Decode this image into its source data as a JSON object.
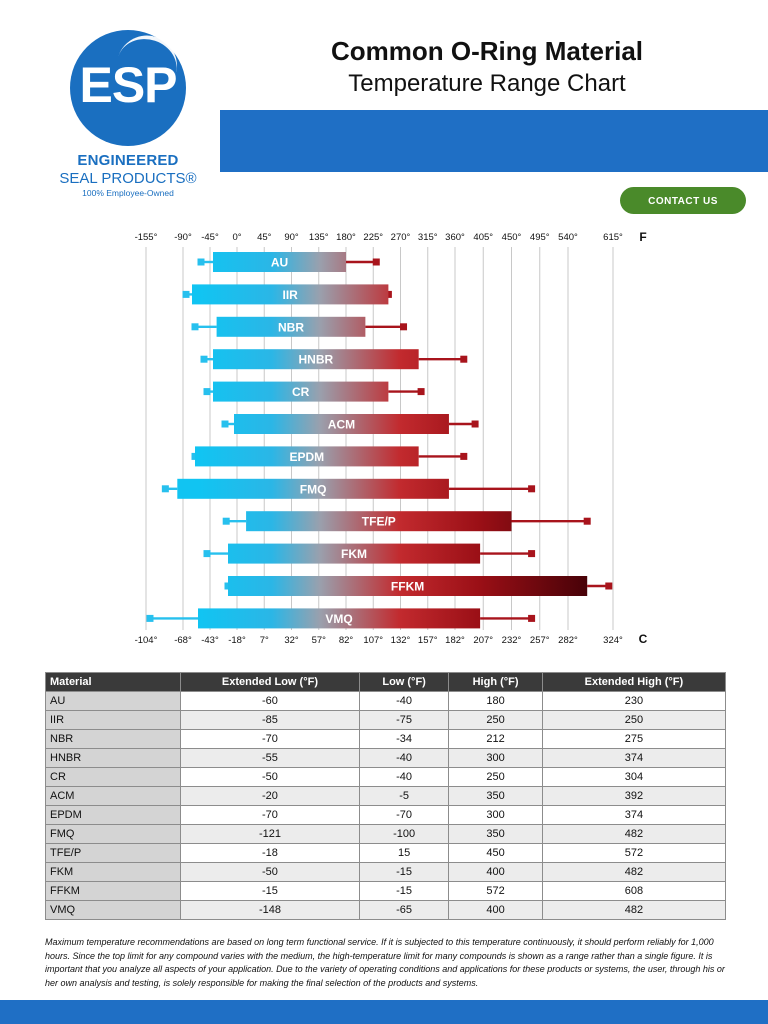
{
  "logo": {
    "mark": "ESP",
    "line1": "ENGINEERED",
    "line2": "SEAL PRODUCTS®",
    "line3": "100% Employee-Owned"
  },
  "header": {
    "title": "Common O-Ring Material",
    "subtitle": "Temperature Range Chart",
    "contact_label": "CONTACT US"
  },
  "colors": {
    "brand_blue": "#1f6fc5",
    "contact_green": "#4a8a2a",
    "bar_cold": "#11c4f2",
    "bar_hot": "#b0181e",
    "bar_hottest": "#4a0008"
  },
  "chart_data": {
    "type": "bar",
    "orientation": "horizontal-range",
    "top_axis_unit": "F",
    "bottom_axis_unit": "C",
    "top_ticks": [
      "-155°",
      "-90°",
      "-45°",
      "0°",
      "45°",
      "90°",
      "135°",
      "180°",
      "225°",
      "270°",
      "315°",
      "360°",
      "405°",
      "450°",
      "495°",
      "540°",
      "615°"
    ],
    "bottom_ticks": [
      "-104°",
      "-68°",
      "-43°",
      "-18°",
      "7°",
      "32°",
      "57°",
      "82°",
      "107°",
      "132°",
      "157°",
      "182°",
      "207°",
      "232°",
      "257°",
      "282°",
      "324°"
    ],
    "xlim": [
      -155,
      615
    ],
    "grid": true,
    "categories": [
      "AU",
      "IIR",
      "NBR",
      "HNBR",
      "CR",
      "ACM",
      "EPDM",
      "FMQ",
      "TFE/P",
      "FKM",
      "FFKM",
      "VMQ"
    ],
    "series": [
      {
        "name": "Extended Low (°F)",
        "values": [
          -60,
          -85,
          -70,
          -55,
          -50,
          -20,
          -70,
          -121,
          -18,
          -50,
          -15,
          -148
        ]
      },
      {
        "name": "Low (°F)",
        "values": [
          -40,
          -75,
          -34,
          -40,
          -40,
          -5,
          -70,
          -100,
          15,
          -15,
          -15,
          -65
        ]
      },
      {
        "name": "High (°F)",
        "values": [
          180,
          250,
          212,
          300,
          250,
          350,
          300,
          350,
          450,
          400,
          572,
          400
        ]
      },
      {
        "name": "Extended High (°F)",
        "values": [
          230,
          250,
          275,
          374,
          304,
          392,
          374,
          482,
          572,
          482,
          608,
          482
        ]
      }
    ]
  },
  "table": {
    "headers": [
      "Material",
      "Extended Low (°F)",
      "Low (°F)",
      "High (°F)",
      "Extended High (°F)"
    ],
    "rows": [
      [
        "AU",
        "-60",
        "-40",
        "180",
        "230"
      ],
      [
        "IIR",
        "-85",
        "-75",
        "250",
        "250"
      ],
      [
        "NBR",
        "-70",
        "-34",
        "212",
        "275"
      ],
      [
        "HNBR",
        "-55",
        "-40",
        "300",
        "374"
      ],
      [
        "CR",
        "-50",
        "-40",
        "250",
        "304"
      ],
      [
        "ACM",
        "-20",
        "-5",
        "350",
        "392"
      ],
      [
        "EPDM",
        "-70",
        "-70",
        "300",
        "374"
      ],
      [
        "FMQ",
        "-121",
        "-100",
        "350",
        "482"
      ],
      [
        "TFE/P",
        "-18",
        "15",
        "450",
        "572"
      ],
      [
        "FKM",
        "-50",
        "-15",
        "400",
        "482"
      ],
      [
        "FFKM",
        "-15",
        "-15",
        "572",
        "608"
      ],
      [
        "VMQ",
        "-148",
        "-65",
        "400",
        "482"
      ]
    ]
  },
  "footnote": "Maximum temperature recommendations are based on long term functional service. If it is subjected to this temperature continuously, it should perform reliably for 1,000 hours. Since the top limit for any compound varies with the medium, the high-temperature limit for many compounds is shown as a range rather than a single figure. It is important that you analyze all aspects of your application. Due to the variety of operating conditions and applications for these products or systems, the user, through his or her own analysis and testing, is solely responsible for making the final selection of the products and systems."
}
